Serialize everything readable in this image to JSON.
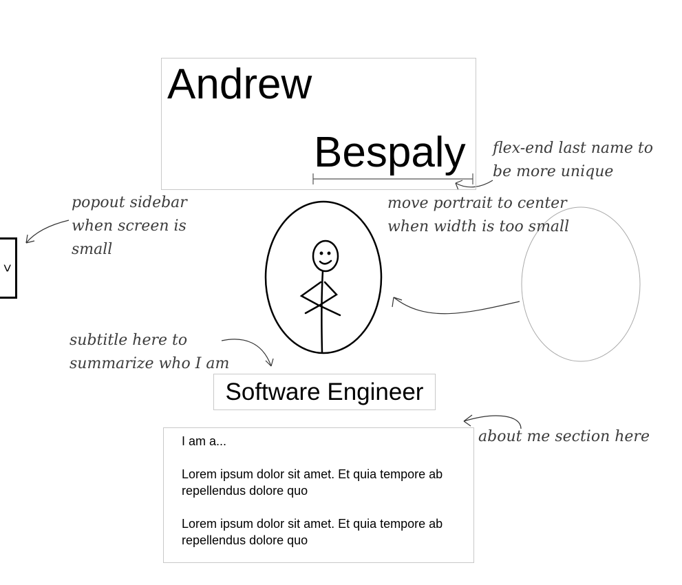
{
  "header": {
    "first_name": "Andrew",
    "last_name": "Bespaly"
  },
  "sidebar": {
    "toggle_glyph": ">",
    "toggle_icon": "chevron-right-icon"
  },
  "subtitle": "Software Engineer",
  "about": {
    "intro": "I am a...",
    "paragraphs": [
      "Lorem ipsum dolor sit amet. Et quia tempore ab repellendus dolore quo",
      "Lorem ipsum dolor sit amet. Et quia tempore ab repellendus dolore quo"
    ]
  },
  "annotations": {
    "flex_end": [
      "flex-end last name to",
      "be more unique"
    ],
    "portrait": [
      "move portrait to center",
      "when width is too small"
    ],
    "sidebar": [
      "popout sidebar",
      "when screen is",
      "small"
    ],
    "subtitle": [
      "subtitle here to",
      "summarize who I am"
    ],
    "about": [
      "about me section here"
    ]
  },
  "colors": {
    "ink": "#000000",
    "note_ink": "#3c3c3c",
    "box_border": "#c8c8c8"
  }
}
